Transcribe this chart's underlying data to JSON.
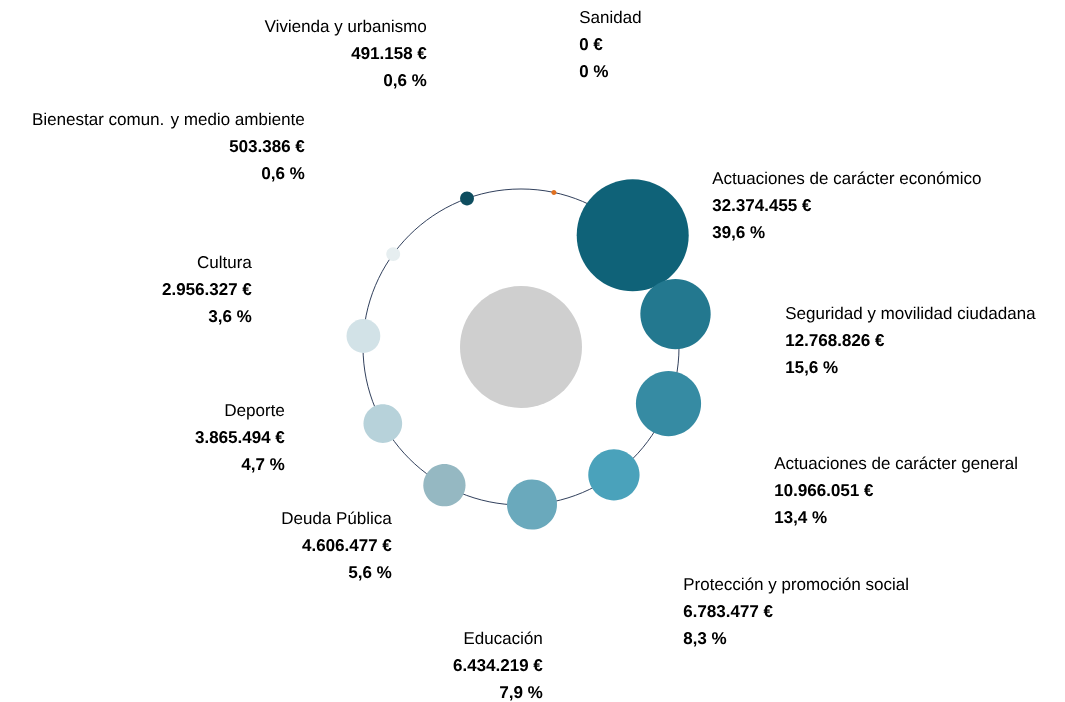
{
  "chart_data": {
    "type": "other",
    "categories": [
      "Sanidad",
      "Actuaciones de carácter económico",
      "Seguridad y movilidad ciudadana",
      "Actuaciones de carácter general",
      "Protección y promoción social",
      "Educación",
      "Deuda Pública",
      "Deporte",
      "Cultura",
      "Bienestar comun. y medio ambiente",
      "Vivienda y urbanismo"
    ],
    "colors": [
      "#e07020",
      "#0f6278",
      "#23788f",
      "#368ba3",
      "#4aa2bb",
      "#6aa9bc",
      "#95b8c2",
      "#b7d2da",
      "#d2e2e7",
      "#e6eef0",
      "#0e4d5f"
    ],
    "series": [
      {
        "values": [
          0,
          32374455,
          12768826,
          10966051,
          6783477,
          6434219,
          4606477,
          3865494,
          2956327,
          503386,
          491158
        ],
        "value_labels": [
          "0 €",
          "32.374.455 €",
          "12.768.826 €",
          "10.966.051 €",
          "6.783.477 €",
          "6.434.219 €",
          "4.606.477 €",
          "3.865.494 €",
          "2.956.327 €",
          "503.386 €",
          "491.158 €"
        ]
      },
      {
        "values": [
          0,
          39.6,
          15.6,
          13.4,
          8.3,
          7.9,
          5.6,
          4.7,
          3.6,
          0.6,
          0.6
        ],
        "value_labels": [
          "0 %",
          "39,6 %",
          "15,6 %",
          "13,4 %",
          "8,3 %",
          "7,9 %",
          "5,6 %",
          "4,7 %",
          "3,6 %",
          "0,6 %",
          "0,6 %"
        ]
      }
    ]
  }
}
